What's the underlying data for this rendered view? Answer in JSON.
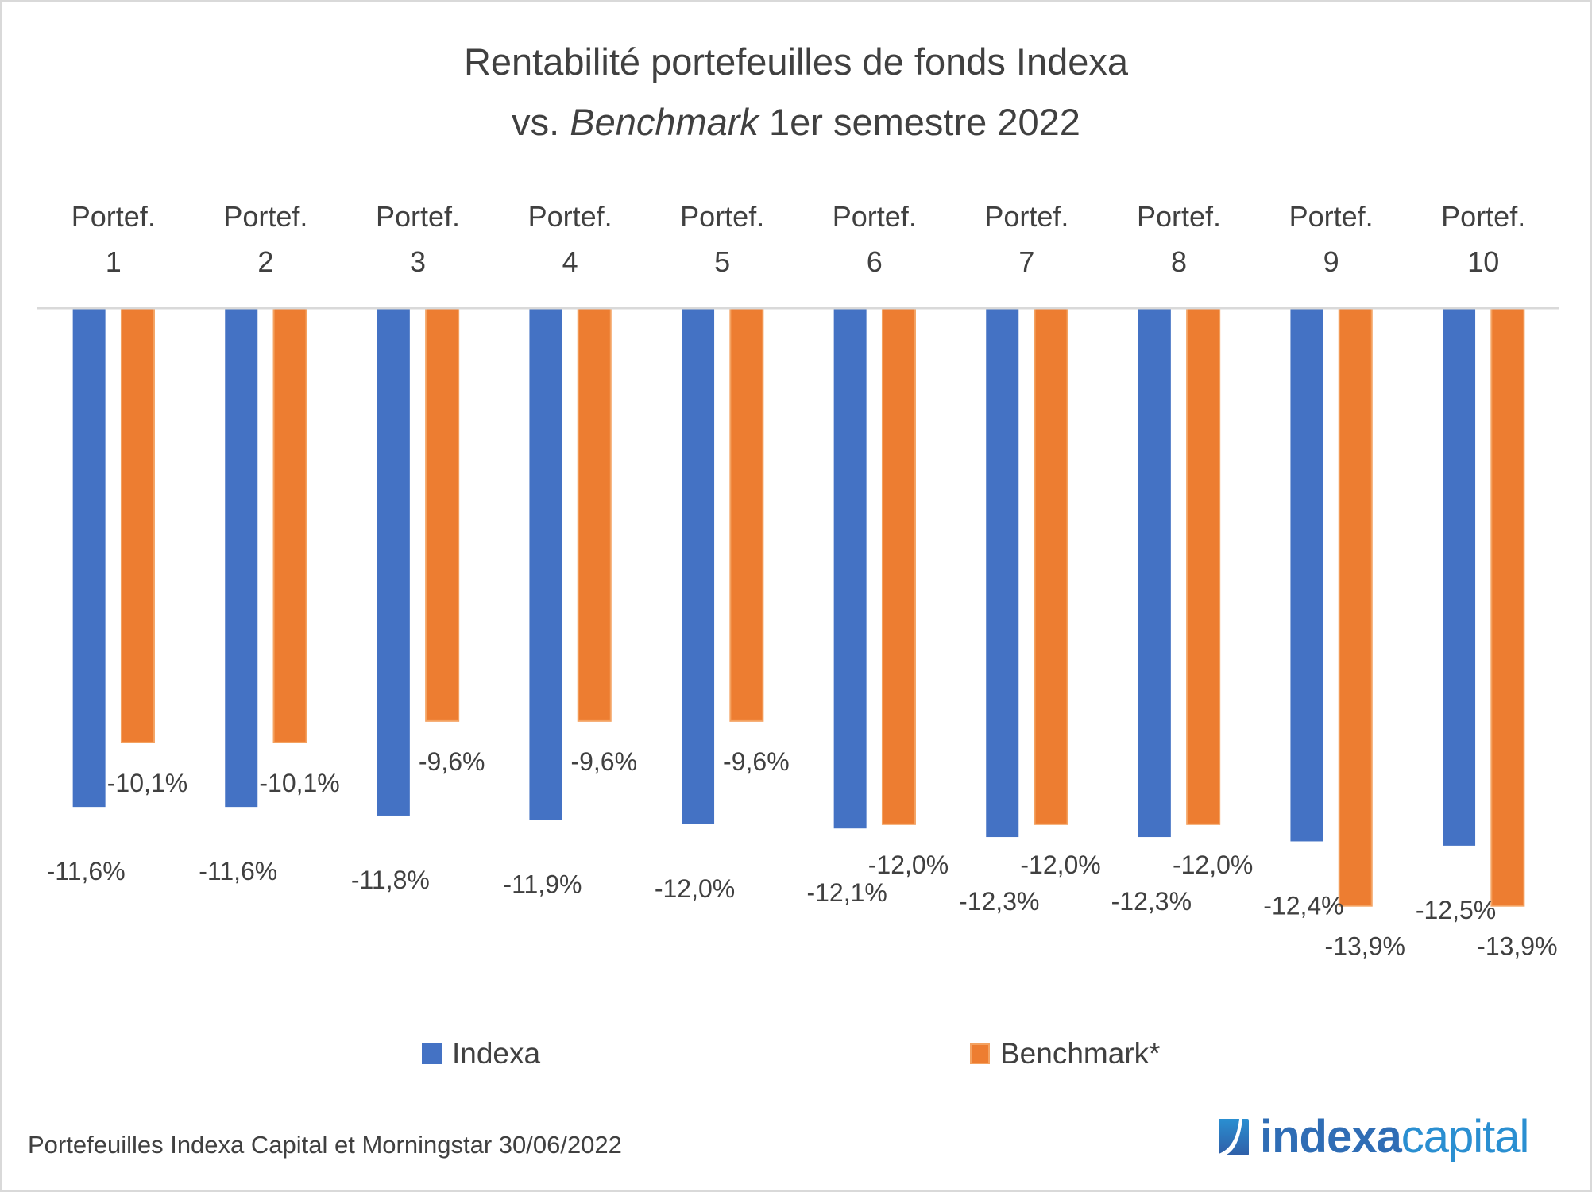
{
  "title": {
    "line1": "Rentabilité portefeuilles de fonds Indexa",
    "line2_prefix": "vs. ",
    "line2_italic": "Benchmark",
    "line2_suffix": " 1er semestre 2022"
  },
  "colors": {
    "indexa": "#4472c4",
    "benchmark": "#ed7d31",
    "benchmark_edge": "#f4a261",
    "axis": "#d9d9d9",
    "text": "#404040"
  },
  "chart_data": {
    "type": "bar",
    "title": "Rentabilité portefeuilles de fonds Indexa vs. Benchmark 1er semestre 2022",
    "xlabel": "",
    "ylabel": "",
    "ylim": [
      -15,
      0
    ],
    "grid": false,
    "legend_position": "bottom",
    "categories": [
      [
        "Portef.",
        "1"
      ],
      [
        "Portef.",
        "2"
      ],
      [
        "Portef.",
        "3"
      ],
      [
        "Portef.",
        "4"
      ],
      [
        "Portef.",
        "5"
      ],
      [
        "Portef.",
        "6"
      ],
      [
        "Portef.",
        "7"
      ],
      [
        "Portef.",
        "8"
      ],
      [
        "Portef.",
        "9"
      ],
      [
        "Portef.",
        "10"
      ]
    ],
    "series": [
      {
        "name": "Indexa",
        "values": [
          -11.6,
          -11.6,
          -11.8,
          -11.9,
          -12.0,
          -12.1,
          -12.3,
          -12.3,
          -12.4,
          -12.5
        ],
        "labels": [
          "-11,6%",
          "-11,6%",
          "-11,8%",
          "-11,9%",
          "-12,0%",
          "-12,1%",
          "-12,3%",
          "-12,3%",
          "-12,4%",
          "-12,5%"
        ]
      },
      {
        "name": "Benchmark*",
        "values": [
          -10.1,
          -10.1,
          -9.6,
          -9.6,
          -9.6,
          -12.0,
          -12.0,
          -12.0,
          -13.9,
          -13.9
        ],
        "labels": [
          "-10,1%",
          "-10,1%",
          "-9,6%",
          "-9,6%",
          "-9,6%",
          "-12,0%",
          "-12,0%",
          "-12,0%",
          "-13,9%",
          "-13,9%"
        ]
      }
    ]
  },
  "legend": {
    "indexa_label": "Indexa",
    "benchmark_label": "Benchmark*"
  },
  "footer": {
    "source": "Portefeuilles Indexa Capital et Morningstar 30/06/2022"
  },
  "logo": {
    "word1": "indexa",
    "word2": "capital"
  }
}
